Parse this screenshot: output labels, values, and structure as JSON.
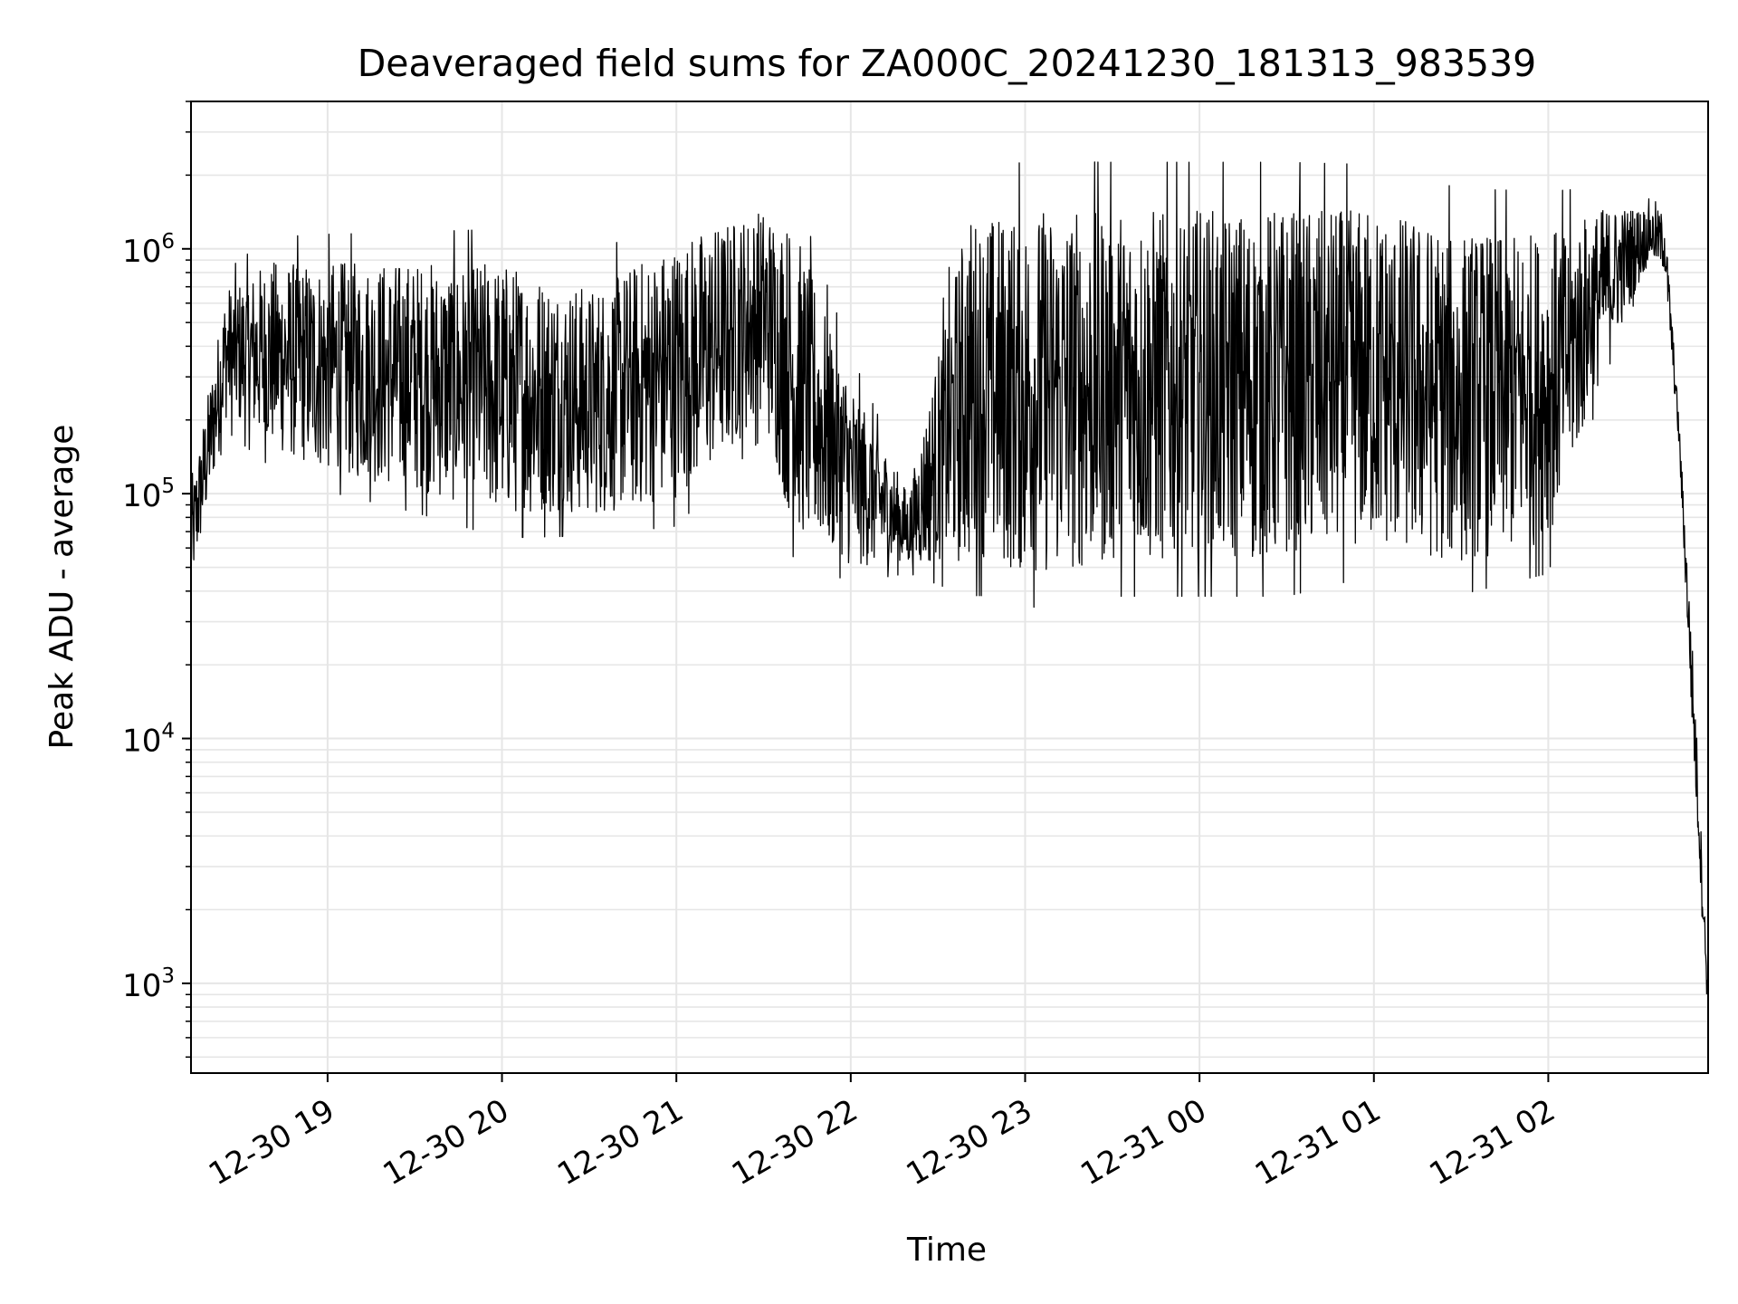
{
  "chart_data": {
    "type": "line",
    "title": "Deaveraged field sums for ZA000C_20241230_181313_983539",
    "xlabel": "Time",
    "ylabel": "Peak ADU - average",
    "yscale": "log",
    "ylim": [
      430,
      4000000
    ],
    "xlim": [
      "12-30 18:13",
      "12-31 02:55"
    ],
    "grid": true,
    "line_color": "#000000",
    "grid_color": "#e6e6e6",
    "x_ticks": [
      "12-30 19",
      "12-30 20",
      "12-30 21",
      "12-30 22",
      "12-30 23",
      "12-31 00",
      "12-31 01",
      "12-31 02"
    ],
    "y_ticks": [
      {
        "base": "10",
        "exp": "3",
        "value": 1000
      },
      {
        "base": "10",
        "exp": "4",
        "value": 10000
      },
      {
        "base": "10",
        "exp": "5",
        "value": 100000
      },
      {
        "base": "10",
        "exp": "6",
        "value": 1000000
      }
    ],
    "series": [
      {
        "description_of_envelope": "upper/lower envelope of a densely sampled noisy time series",
        "x": [
          "12-30 18:13",
          "12-30 18:25",
          "12-30 18:40",
          "12-30 19:00",
          "12-30 19:30",
          "12-30 20:00",
          "12-30 20:30",
          "12-30 21:00",
          "12-30 21:30",
          "12-30 21:40",
          "12-30 22:00",
          "12-30 22:20",
          "12-30 22:40",
          "12-30 22:50",
          "12-30 23:00",
          "12-30 23:30",
          "12-31 00:00",
          "12-31 00:30",
          "12-31 01:00",
          "12-31 01:30",
          "12-31 02:00",
          "12-31 02:20",
          "12-31 02:35",
          "12-31 02:40",
          "12-31 02:45",
          "12-31 02:50",
          "12-31 02:55"
        ],
        "upper": [
          100000,
          700000,
          900000,
          900000,
          900000,
          900000,
          700000,
          1100000,
          1500000,
          1300000,
          300000,
          100000,
          1400000,
          1400000,
          1500000,
          1500000,
          1500000,
          1500000,
          1500000,
          1200000,
          1200000,
          1500000,
          1500000,
          1400000,
          200000,
          20000,
          1000
        ],
        "lower": [
          40000,
          200000,
          150000,
          120000,
          100000,
          80000,
          80000,
          90000,
          200000,
          70000,
          50000,
          50000,
          50000,
          50000,
          45000,
          50000,
          50000,
          50000,
          60000,
          50000,
          60000,
          350000,
          900000,
          800000,
          150000,
          8000,
          700
        ]
      }
    ]
  }
}
